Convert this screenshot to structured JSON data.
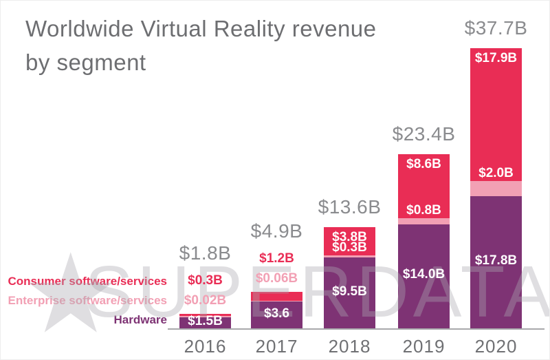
{
  "title": {
    "line1": "Worldwide Virtual Reality revenue",
    "line2": "by segment"
  },
  "watermark": {
    "star": "★",
    "text": "SUPERDATA"
  },
  "legend": {
    "items": [
      {
        "label": "Consumer software/services",
        "color": "#e92d55"
      },
      {
        "label": "Enterprise software/services",
        "color": "#f2a0b4"
      },
      {
        "label": "Hardware",
        "color": "#7e3374"
      }
    ]
  },
  "colors": {
    "consumer": "#e92d55",
    "enterprise": "#f2a0b4",
    "hardware": "#7e3374",
    "title_text": "#6d6e71",
    "total_label": "#8a8b8e",
    "year_label": "#6f7073",
    "inside_label": "#ffffff",
    "axis": "#a8a8ab",
    "watermark": "rgba(170,169,176,0.38)"
  },
  "chart_data": {
    "type": "bar",
    "stacked": true,
    "title": "Worldwide Virtual Reality revenue by segment",
    "unit": "USD billions",
    "xlabel": "",
    "ylabel": "",
    "grid": false,
    "legend_position": "left-bottom",
    "categories": [
      "2016",
      "2017",
      "2018",
      "2019",
      "2020"
    ],
    "series": [
      {
        "name": "Hardware",
        "color": "#7e3374",
        "values": [
          1.5,
          3.6,
          9.5,
          14.0,
          17.8
        ],
        "labels": [
          "$1.5B",
          "$3.6",
          "$9.5B",
          "$14.0B",
          "$17.8B"
        ]
      },
      {
        "name": "Enterprise software/services",
        "color": "#f2a0b4",
        "values": [
          0.02,
          0.06,
          0.3,
          0.8,
          2.0
        ],
        "labels": [
          "$0.02B",
          "$0.06B",
          "$0.3B",
          "$0.8B",
          "$2.0B"
        ]
      },
      {
        "name": "Consumer software/services",
        "color": "#e92d55",
        "values": [
          0.3,
          1.2,
          3.8,
          8.6,
          17.9
        ],
        "labels": [
          "$0.3B",
          "$1.2B",
          "$3.8B",
          "$8.6B",
          "$17.9B"
        ]
      }
    ],
    "totals": [
      1.8,
      4.9,
      13.6,
      23.4,
      37.7
    ],
    "total_labels": [
      "$1.8B",
      "$4.9B",
      "$13.6B",
      "$23.4B",
      "$37.7B"
    ],
    "outside_value_labels": [
      true,
      true,
      false,
      false,
      false
    ],
    "ylim": [
      0,
      40
    ]
  }
}
